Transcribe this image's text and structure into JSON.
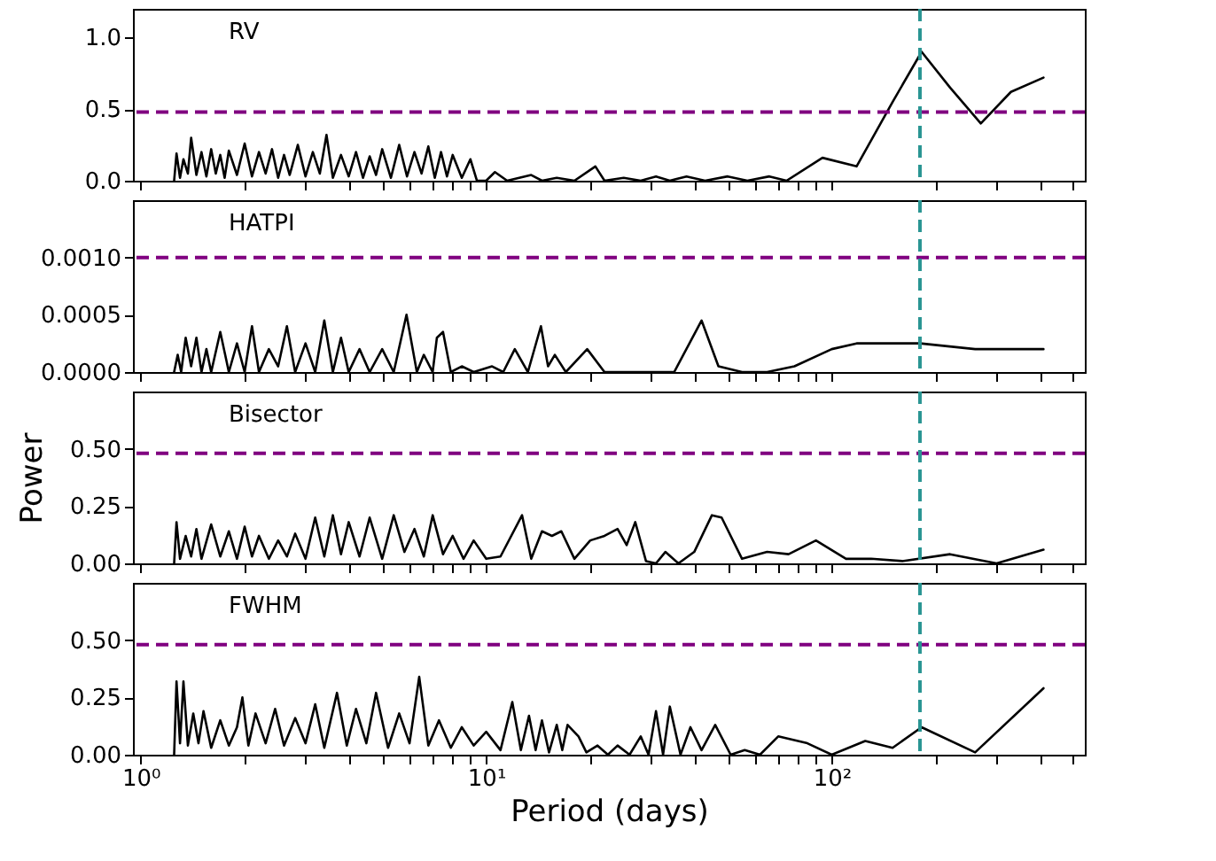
{
  "chart_data": [
    {
      "type": "line",
      "title": "RV",
      "log": "x",
      "tick_labels": "y",
      "xlim": [
        0.95,
        540
      ],
      "ylim": [
        0,
        1.2
      ],
      "xticks": [
        {
          "value": 1,
          "label": null
        },
        {
          "value": 2,
          "label": null
        },
        {
          "value": 3,
          "label": null
        },
        {
          "value": 4,
          "label": null
        },
        {
          "value": 5,
          "label": null
        },
        {
          "value": 6,
          "label": null
        },
        {
          "value": 7,
          "label": null
        },
        {
          "value": 8,
          "label": null
        },
        {
          "value": 9,
          "label": null
        },
        {
          "value": 10,
          "label": null
        },
        {
          "value": 20,
          "label": null
        },
        {
          "value": 30,
          "label": null
        },
        {
          "value": 40,
          "label": null
        },
        {
          "value": 50,
          "label": null
        },
        {
          "value": 60,
          "label": null
        },
        {
          "value": 70,
          "label": null
        },
        {
          "value": 80,
          "label": null
        },
        {
          "value": 90,
          "label": null
        },
        {
          "value": 100,
          "label": null
        },
        {
          "value": 200,
          "label": null
        },
        {
          "value": 300,
          "label": null
        },
        {
          "value": 400,
          "label": null
        },
        {
          "value": 500,
          "label": null
        }
      ],
      "yticks": [
        {
          "value": 0,
          "label": "0.0"
        },
        {
          "value": 0.5,
          "label": "0.5"
        },
        {
          "value": 1,
          "label": "1.0"
        }
      ],
      "x": [
        1.25,
        1.27,
        1.3,
        1.33,
        1.37,
        1.4,
        1.45,
        1.5,
        1.55,
        1.6,
        1.65,
        1.7,
        1.75,
        1.8,
        1.9,
        2.0,
        2.1,
        2.2,
        2.3,
        2.4,
        2.5,
        2.6,
        2.7,
        2.85,
        3.0,
        3.15,
        3.3,
        3.45,
        3.6,
        3.8,
        4.0,
        4.2,
        4.4,
        4.6,
        4.8,
        5.0,
        5.3,
        5.6,
        5.9,
        6.2,
        6.5,
        6.8,
        7.1,
        7.4,
        7.7,
        8.0,
        8.5,
        9.0,
        9.4,
        10.0,
        10.6,
        11.5,
        13.5,
        14.5,
        16,
        18,
        20.7,
        22,
        25,
        28,
        31,
        34,
        38,
        43,
        50,
        57,
        66,
        74,
        94,
        118,
        150,
        182,
        220,
        270,
        330,
        410
      ],
      "series": [
        {
          "color": "#000000",
          "values": [
            0,
            0.19,
            0.02,
            0.15,
            0.05,
            0.3,
            0.04,
            0.2,
            0.03,
            0.22,
            0.05,
            0.18,
            0.02,
            0.21,
            0.04,
            0.26,
            0.03,
            0.2,
            0.05,
            0.22,
            0.02,
            0.18,
            0.04,
            0.25,
            0.03,
            0.2,
            0.05,
            0.32,
            0.02,
            0.18,
            0.03,
            0.2,
            0.02,
            0.17,
            0.04,
            0.22,
            0.02,
            0.25,
            0.03,
            0.2,
            0.05,
            0.24,
            0.02,
            0.2,
            0.03,
            0.18,
            0.02,
            0.15,
            0,
            0,
            0.06,
            0,
            0.04,
            0,
            0.02,
            0,
            0.1,
            0,
            0.02,
            0,
            0.03,
            0,
            0.03,
            0,
            0.03,
            0,
            0.03,
            0,
            0.16,
            0.1,
            0.55,
            0.9,
            0.65,
            0.4,
            0.62,
            0.72
          ]
        }
      ],
      "ref_lines": [
        {
          "axis": "y",
          "value": 0.48,
          "color": "#800080",
          "line_style": "dashed"
        },
        {
          "axis": "x",
          "value": 180,
          "color": "#2a9593",
          "line_style": "dashed"
        }
      ]
    },
    {
      "type": "line",
      "title": "HATPI",
      "log": "x",
      "tick_labels": "y",
      "xlim": [
        0.95,
        540
      ],
      "ylim": [
        0,
        0.0015
      ],
      "xticks": [
        {
          "value": 1,
          "label": null
        },
        {
          "value": 2,
          "label": null
        },
        {
          "value": 3,
          "label": null
        },
        {
          "value": 4,
          "label": null
        },
        {
          "value": 5,
          "label": null
        },
        {
          "value": 6,
          "label": null
        },
        {
          "value": 7,
          "label": null
        },
        {
          "value": 8,
          "label": null
        },
        {
          "value": 9,
          "label": null
        },
        {
          "value": 10,
          "label": null
        },
        {
          "value": 20,
          "label": null
        },
        {
          "value": 30,
          "label": null
        },
        {
          "value": 40,
          "label": null
        },
        {
          "value": 50,
          "label": null
        },
        {
          "value": 60,
          "label": null
        },
        {
          "value": 70,
          "label": null
        },
        {
          "value": 80,
          "label": null
        },
        {
          "value": 90,
          "label": null
        },
        {
          "value": 100,
          "label": null
        },
        {
          "value": 200,
          "label": null
        },
        {
          "value": 300,
          "label": null
        },
        {
          "value": 400,
          "label": null
        },
        {
          "value": 500,
          "label": null
        }
      ],
      "yticks": [
        {
          "value": 0,
          "label": "0.0000"
        },
        {
          "value": 0.0005,
          "label": "0.0005"
        },
        {
          "value": 0.001,
          "label": "0.0010"
        }
      ],
      "x": [
        1.25,
        1.28,
        1.31,
        1.35,
        1.4,
        1.45,
        1.5,
        1.55,
        1.6,
        1.7,
        1.8,
        1.9,
        2.0,
        2.1,
        2.2,
        2.35,
        2.5,
        2.65,
        2.8,
        3.0,
        3.2,
        3.4,
        3.6,
        3.8,
        4.0,
        4.3,
        4.6,
        5.0,
        5.4,
        5.88,
        6.3,
        6.6,
        7.0,
        7.2,
        7.5,
        7.9,
        8.5,
        9.2,
        10.4,
        11.2,
        12.1,
        13.2,
        14.4,
        15.1,
        15.8,
        17,
        19.6,
        22,
        26,
        30,
        35,
        42,
        47,
        55,
        65,
        78,
        100,
        118,
        180,
        260,
        410
      ],
      "series": [
        {
          "color": "#000000",
          "values": [
            0,
            0.00015,
            0,
            0.0003,
            5e-05,
            0.0003,
            0,
            0.0002,
            0,
            0.00035,
            0,
            0.00025,
            0,
            0.0004,
            0,
            0.0002,
            5e-05,
            0.0004,
            0,
            0.00025,
            0,
            0.00045,
            0,
            0.0003,
            0,
            0.0002,
            0,
            0.0002,
            0,
            0.0005,
            0,
            0.00015,
            0,
            0.0003,
            0.00035,
            0,
            5e-05,
            0,
            5e-05,
            0,
            0.0002,
            0,
            0.0004,
            5e-05,
            0.00015,
            0,
            0.0002,
            0,
            0,
            0,
            0,
            0.00045,
            5e-05,
            0,
            0,
            5e-05,
            0.0002,
            0.00025,
            0.00025,
            0.0002,
            0.0002
          ]
        }
      ],
      "ref_lines": [
        {
          "axis": "y",
          "value": 0.001,
          "color": "#800080",
          "line_style": "dashed"
        },
        {
          "axis": "x",
          "value": 180,
          "color": "#2a9593",
          "line_style": "dashed"
        }
      ]
    },
    {
      "type": "line",
      "title": "Bisector",
      "ylabel": "Power",
      "log": "x",
      "tick_labels": "y",
      "xlim": [
        0.95,
        540
      ],
      "ylim": [
        0,
        0.75
      ],
      "xticks": [
        {
          "value": 1,
          "label": null
        },
        {
          "value": 2,
          "label": null
        },
        {
          "value": 3,
          "label": null
        },
        {
          "value": 4,
          "label": null
        },
        {
          "value": 5,
          "label": null
        },
        {
          "value": 6,
          "label": null
        },
        {
          "value": 7,
          "label": null
        },
        {
          "value": 8,
          "label": null
        },
        {
          "value": 9,
          "label": null
        },
        {
          "value": 10,
          "label": null
        },
        {
          "value": 20,
          "label": null
        },
        {
          "value": 30,
          "label": null
        },
        {
          "value": 40,
          "label": null
        },
        {
          "value": 50,
          "label": null
        },
        {
          "value": 60,
          "label": null
        },
        {
          "value": 70,
          "label": null
        },
        {
          "value": 80,
          "label": null
        },
        {
          "value": 90,
          "label": null
        },
        {
          "value": 100,
          "label": null
        },
        {
          "value": 200,
          "label": null
        },
        {
          "value": 300,
          "label": null
        },
        {
          "value": 400,
          "label": null
        },
        {
          "value": 500,
          "label": null
        }
      ],
      "yticks": [
        {
          "value": 0,
          "label": "0.00"
        },
        {
          "value": 0.25,
          "label": "0.25"
        },
        {
          "value": 0.5,
          "label": "0.50"
        }
      ],
      "x": [
        1.25,
        1.27,
        1.3,
        1.35,
        1.4,
        1.45,
        1.5,
        1.6,
        1.7,
        1.8,
        1.9,
        2.0,
        2.1,
        2.2,
        2.35,
        2.5,
        2.65,
        2.8,
        3.0,
        3.2,
        3.4,
        3.6,
        3.8,
        4.0,
        4.3,
        4.6,
        5.0,
        5.4,
        5.8,
        6.2,
        6.6,
        7.0,
        7.5,
        8.0,
        8.6,
        9.2,
        10,
        11,
        12.7,
        13.5,
        14.5,
        15.5,
        16.5,
        18,
        20,
        22,
        24,
        25.5,
        27,
        29,
        31,
        33,
        36,
        40,
        45,
        48,
        55,
        65,
        75,
        90,
        110,
        130,
        160,
        220,
        300,
        410
      ],
      "series": [
        {
          "color": "#000000",
          "values": [
            0,
            0.18,
            0.02,
            0.12,
            0.03,
            0.15,
            0.02,
            0.17,
            0.03,
            0.14,
            0.02,
            0.16,
            0.03,
            0.12,
            0.02,
            0.1,
            0.03,
            0.13,
            0.02,
            0.2,
            0.03,
            0.21,
            0.04,
            0.18,
            0.03,
            0.2,
            0.02,
            0.21,
            0.05,
            0.15,
            0.03,
            0.21,
            0.04,
            0.12,
            0.02,
            0.1,
            0.02,
            0.03,
            0.21,
            0.02,
            0.14,
            0.12,
            0.14,
            0.02,
            0.1,
            0.12,
            0.15,
            0.08,
            0.18,
            0.01,
            0.0,
            0.05,
            0.0,
            0.05,
            0.21,
            0.2,
            0.02,
            0.05,
            0.04,
            0.1,
            0.02,
            0.02,
            0.01,
            0.04,
            0.0,
            0.06
          ]
        }
      ],
      "ref_lines": [
        {
          "axis": "y",
          "value": 0.48,
          "color": "#800080",
          "line_style": "dashed"
        },
        {
          "axis": "x",
          "value": 180,
          "color": "#2a9593",
          "line_style": "dashed"
        }
      ]
    },
    {
      "type": "line",
      "title": "FWHM",
      "xlabel": "Period  (days)",
      "log": "x",
      "xlim": [
        0.95,
        540
      ],
      "ylim": [
        0,
        0.75
      ],
      "xticks": [
        {
          "value": 1,
          "label": "10⁰"
        },
        {
          "value": 2,
          "label": null
        },
        {
          "value": 3,
          "label": null
        },
        {
          "value": 4,
          "label": null
        },
        {
          "value": 5,
          "label": null
        },
        {
          "value": 6,
          "label": null
        },
        {
          "value": 7,
          "label": null
        },
        {
          "value": 8,
          "label": null
        },
        {
          "value": 9,
          "label": null
        },
        {
          "value": 10,
          "label": "10¹"
        },
        {
          "value": 20,
          "label": null
        },
        {
          "value": 30,
          "label": null
        },
        {
          "value": 40,
          "label": null
        },
        {
          "value": 50,
          "label": null
        },
        {
          "value": 60,
          "label": null
        },
        {
          "value": 70,
          "label": null
        },
        {
          "value": 80,
          "label": null
        },
        {
          "value": 90,
          "label": null
        },
        {
          "value": 100,
          "label": "10²"
        },
        {
          "value": 200,
          "label": null
        },
        {
          "value": 300,
          "label": null
        },
        {
          "value": 400,
          "label": null
        },
        {
          "value": 500,
          "label": null
        }
      ],
      "yticks": [
        {
          "value": 0,
          "label": "0.00"
        },
        {
          "value": 0.25,
          "label": "0.25"
        },
        {
          "value": 0.5,
          "label": "0.50"
        }
      ],
      "x": [
        1.25,
        1.27,
        1.3,
        1.33,
        1.37,
        1.42,
        1.47,
        1.52,
        1.6,
        1.7,
        1.8,
        1.9,
        1.97,
        2.05,
        2.15,
        2.3,
        2.45,
        2.6,
        2.8,
        3.0,
        3.2,
        3.4,
        3.7,
        3.95,
        4.2,
        4.5,
        4.8,
        5.2,
        5.6,
        6.0,
        6.4,
        6.8,
        7.3,
        7.9,
        8.5,
        9.2,
        10,
        11,
        11.9,
        12.6,
        13.3,
        13.9,
        14.5,
        15.2,
        16,
        16.6,
        17.2,
        18.5,
        19.5,
        21,
        22.5,
        24,
        26,
        28,
        29.5,
        31,
        32.5,
        34,
        36.5,
        39,
        42,
        46,
        51,
        56,
        62,
        70,
        85,
        100,
        125,
        150,
        182,
        260,
        410
      ],
      "series": [
        {
          "color": "#000000",
          "values": [
            0,
            0.32,
            0.05,
            0.32,
            0.04,
            0.18,
            0.05,
            0.19,
            0.03,
            0.15,
            0.04,
            0.12,
            0.25,
            0.04,
            0.18,
            0.05,
            0.2,
            0.04,
            0.16,
            0.05,
            0.22,
            0.03,
            0.27,
            0.04,
            0.2,
            0.05,
            0.27,
            0.03,
            0.18,
            0.05,
            0.34,
            0.04,
            0.15,
            0.03,
            0.12,
            0.04,
            0.1,
            0.02,
            0.23,
            0.02,
            0.17,
            0.02,
            0.15,
            0.01,
            0.13,
            0.02,
            0.13,
            0.08,
            0.01,
            0.04,
            0.0,
            0.04,
            0.0,
            0.08,
            0.0,
            0.19,
            0.0,
            0.21,
            0.0,
            0.12,
            0.02,
            0.13,
            0.0,
            0.02,
            0.0,
            0.08,
            0.05,
            0.0,
            0.06,
            0.03,
            0.12,
            0.01,
            0.29
          ]
        }
      ],
      "ref_lines": [
        {
          "axis": "y",
          "value": 0.48,
          "color": "#800080",
          "line_style": "dashed"
        },
        {
          "axis": "x",
          "value": 180,
          "color": "#2a9593",
          "line_style": "dashed"
        }
      ]
    }
  ]
}
